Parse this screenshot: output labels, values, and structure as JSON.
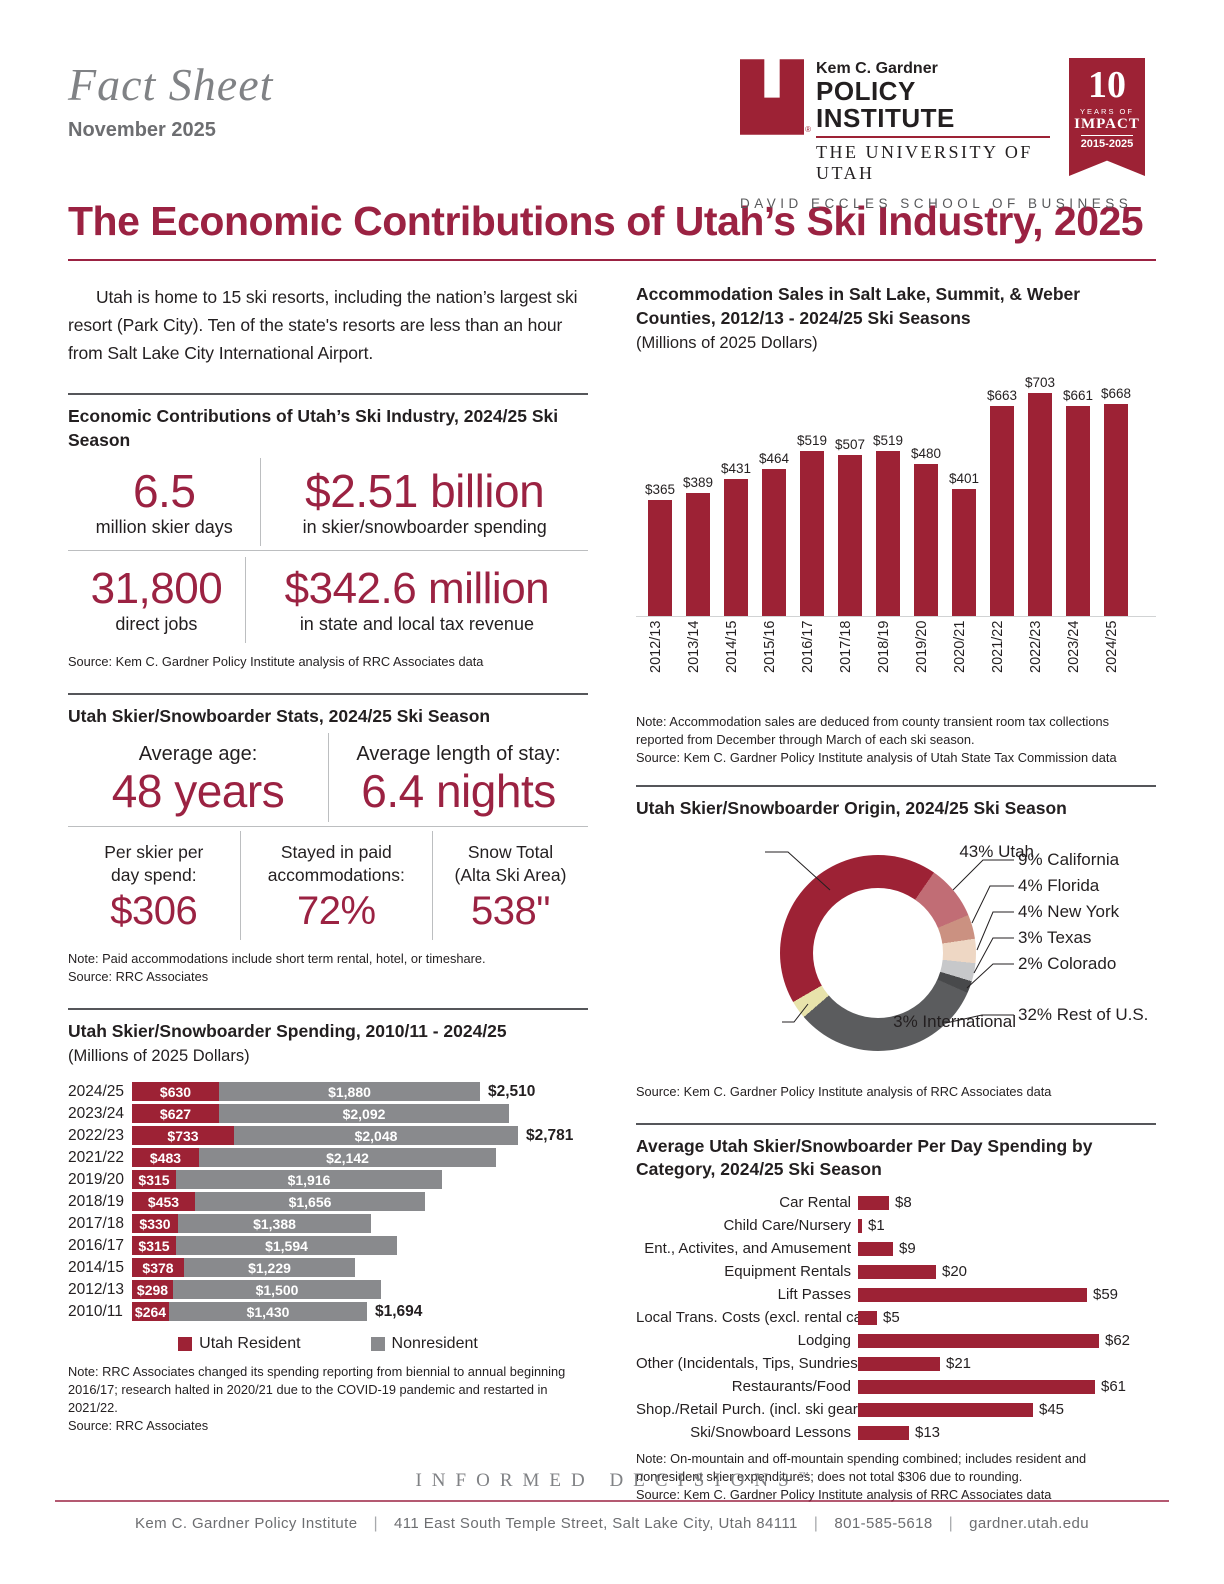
{
  "masthead": {
    "title": "Fact Sheet",
    "date": "November 2025"
  },
  "logo": {
    "line1": "Kem C. Gardner",
    "line2": "POLICY INSTITUTE",
    "line3": "THE UNIVERSITY OF UTAH",
    "school": "DAVID ECCLES SCHOOL OF BUSINESS",
    "reg_mark": "®",
    "badge": {
      "big": "10",
      "small1": "YEARS OF",
      "small2": "IMPACT",
      "small3": "2015-2025"
    }
  },
  "title": "The Economic Contributions of Utah’s Ski Industry, 2025",
  "intro": "Utah is home to 15 ski resorts, including the nation’s largest ski resort (Park City). Ten of the state's resorts are less than an hour from Salt Lake City International Airport.",
  "eco": {
    "heading": "Economic Contributions of Utah’s Ski Industry, 2024/25 Ski Season",
    "stats": [
      {
        "value": "6.5",
        "label": "million skier days"
      },
      {
        "value": "$2.51 billion",
        "label": "in skier/snowboarder spending"
      },
      {
        "value": "31,800",
        "label": "direct jobs"
      },
      {
        "value": "$342.6 million",
        "label": "in state and local tax revenue"
      }
    ],
    "source": "Source: Kem C. Gardner Policy Institute analysis of RRC Associates data"
  },
  "skier_stats": {
    "heading": "Utah Skier/Snowboarder Stats, 2024/25 Ski Season",
    "row1": [
      {
        "label": "Average age:",
        "value": "48 years"
      },
      {
        "label": "Average length of stay:",
        "value": "6.4 nights"
      }
    ],
    "row2": [
      {
        "l1": "Per skier per",
        "l2": "day spend:",
        "value": "$306"
      },
      {
        "l1": "Stayed in paid",
        "l2": "accommodations:",
        "value": "72%"
      },
      {
        "l1": "Snow Total",
        "l2": "(Alta Ski Area)",
        "value": "538\""
      }
    ],
    "note": "Note: Paid accommodations include short term rental, hotel, or timeshare.",
    "source": "Source: RRC Associates"
  },
  "chart_data": [
    {
      "id": "accommodation_sales",
      "type": "bar",
      "title": "Accommodation Sales in Salt Lake, Summit, & Weber Counties, 2012/13 - 2024/25 Ski Seasons",
      "subtitle": "(Millions of 2025 Dollars)",
      "categories": [
        "2012/13",
        "2013/14",
        "2014/15",
        "2015/16",
        "2016/17",
        "2017/18",
        "2018/19",
        "2019/20",
        "2020/21",
        "2021/22",
        "2022/23",
        "2023/24",
        "2024/25"
      ],
      "values": [
        365,
        389,
        431,
        464,
        519,
        507,
        519,
        480,
        401,
        663,
        703,
        661,
        668
      ],
      "value_prefix": "$",
      "ylim": [
        0,
        750
      ],
      "bar_color": "#9d2235",
      "note": "Note: Accommodation sales are deduced from county transient room tax collections reported from December through March of each ski season.",
      "source": "Source: Kem C. Gardner Policy Institute analysis of Utah State Tax Commission data"
    },
    {
      "id": "origin_donut",
      "type": "pie",
      "title": "Utah Skier/Snowboarder Origin, 2024/25 Ski Season",
      "slices": [
        {
          "label": "Utah",
          "pct": 43,
          "color": "#9d2235"
        },
        {
          "label": "California",
          "pct": 9,
          "color": "#c16d75"
        },
        {
          "label": "Florida",
          "pct": 4,
          "color": "#cb9181"
        },
        {
          "label": "New York",
          "pct": 4,
          "color": "#eed7c4"
        },
        {
          "label": "Texas",
          "pct": 3,
          "color": "#c7c8ca"
        },
        {
          "label": "Colorado",
          "pct": 2,
          "color": "#48494b"
        },
        {
          "label": "Rest of U.S.",
          "pct": 32,
          "color": "#5b5c5e"
        },
        {
          "label": "International",
          "pct": 3,
          "color": "#e8e3ab"
        }
      ],
      "source": "Source: Kem C. Gardner Policy Institute analysis of RRC Associates data"
    },
    {
      "id": "spending_by_season",
      "type": "bar",
      "stacked": true,
      "orientation": "horizontal",
      "title": "Utah Skier/Snowboarder Spending, 2010/11 - 2024/25",
      "subtitle": "(Millions of 2025 Dollars)",
      "categories": [
        "2024/25",
        "2023/24",
        "2022/23",
        "2021/22",
        "2019/20",
        "2018/19",
        "2017/18",
        "2016/17",
        "2014/15",
        "2012/13",
        "2010/11"
      ],
      "series": [
        {
          "name": "Utah Resident",
          "color": "#9d2235",
          "values": [
            630,
            627,
            733,
            483,
            315,
            453,
            330,
            315,
            378,
            298,
            264
          ]
        },
        {
          "name": "Nonresident",
          "color": "#898a8d",
          "values": [
            1880,
            2092,
            2048,
            2142,
            1916,
            1656,
            1388,
            1594,
            1229,
            1500,
            1430
          ]
        }
      ],
      "totals": [
        "$2,510",
        "",
        "$2,781",
        "",
        "",
        "",
        "",
        "",
        "",
        "",
        "$1,694"
      ],
      "note": "Note: RRC Associates changed its spending reporting from biennial to annual beginning 2016/17; research halted in 2020/21 due to the COVID-19 pandemic and restarted in 2021/22.",
      "source": "Source: RRC Associates"
    },
    {
      "id": "per_day_category",
      "type": "bar",
      "orientation": "horizontal",
      "title": "Average Utah Skier/Snowboarder Per Day Spending by Category, 2024/25 Ski Season",
      "categories": [
        "Car Rental",
        "Child Care/Nursery",
        "Ent., Activites, and Amusement",
        "Equipment Rentals",
        "Lift Passes",
        "Local Trans. Costs (excl. rental car)",
        "Lodging",
        "Other (Incidentals, Tips, Sundries)",
        "Restaurants/Food",
        "Shop./Retail Purch. (incl. ski gear)",
        "Ski/Snowboard Lessons"
      ],
      "values": [
        8,
        1,
        9,
        20,
        59,
        5,
        62,
        21,
        61,
        45,
        13
      ],
      "value_prefix": "$",
      "bar_color": "#9d2235",
      "note": "Note: On-mountain and off-mountain spending combined; includes resident and nonresident skier expenditures; does not total $306 due to rounding.",
      "source": "Source: Kem C. Gardner Policy Institute analysis of RRC Associates data"
    }
  ],
  "footer": {
    "tagline": "INFORMED DECISIONS",
    "tm": "™",
    "contact": [
      "Kem C. Gardner Policy Institute",
      "411 East South Temple Street, Salt Lake City, Utah 84111",
      "801-585-5618",
      "gardner.utah.edu"
    ]
  }
}
